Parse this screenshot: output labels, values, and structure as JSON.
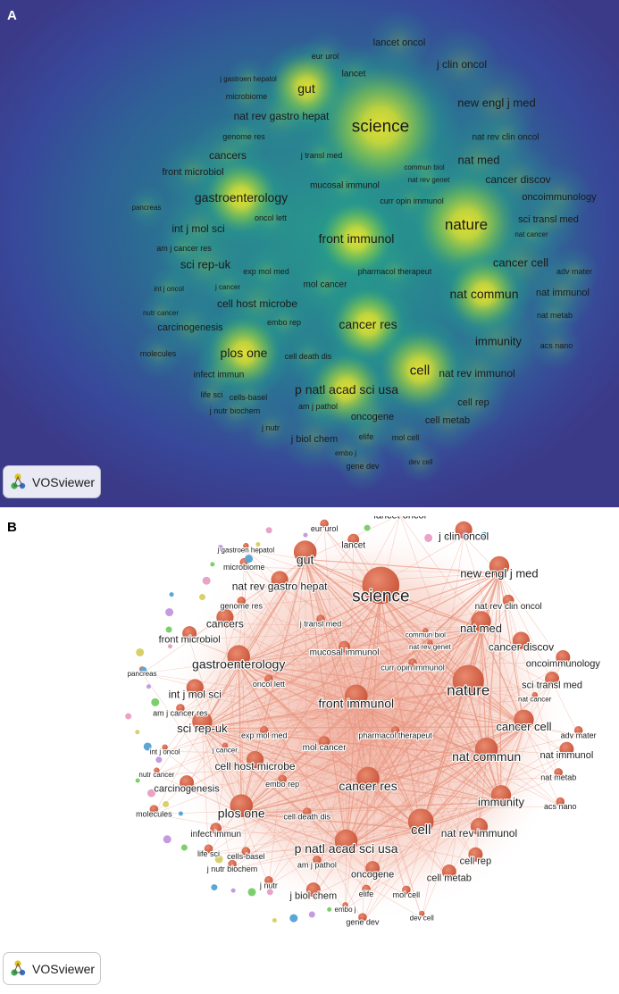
{
  "panels": [
    {
      "letter": "A",
      "kind": "density-visualization"
    },
    {
      "letter": "B",
      "kind": "network-visualization"
    }
  ],
  "brand": {
    "name": "VOSviewer",
    "icon": "vosviewer-logo-icon"
  },
  "colors": {
    "density_low": "#3a3d8f",
    "density_mid": "#21a28c",
    "density_high": "#f6ea2b",
    "network_main_cluster": "#d7664a",
    "network_edges": "#e8957f",
    "minor_clusters": [
      "#7ccf6d",
      "#c49be0",
      "#5aa7d6",
      "#d8d06a",
      "#e9a3c6"
    ]
  },
  "journals": [
    {
      "label": "lancet oncol",
      "size": 11
    },
    {
      "label": "eur urol",
      "size": 9
    },
    {
      "label": "j clin oncol",
      "size": 12
    },
    {
      "label": "j gastroen hepatol",
      "size": 8
    },
    {
      "label": "lancet",
      "size": 10
    },
    {
      "label": "microbiome",
      "size": 9
    },
    {
      "label": "gut",
      "size": 14
    },
    {
      "label": "new engl j med",
      "size": 13
    },
    {
      "label": "nat rev gastro hepat",
      "size": 12
    },
    {
      "label": "science",
      "size": 19
    },
    {
      "label": "genome res",
      "size": 9
    },
    {
      "label": "nat rev clin oncol",
      "size": 10
    },
    {
      "label": "cancers",
      "size": 12
    },
    {
      "label": "j transl med",
      "size": 9
    },
    {
      "label": "nat med",
      "size": 13
    },
    {
      "label": "front microbiol",
      "size": 11
    },
    {
      "label": "commun biol",
      "size": 8
    },
    {
      "label": "nat rev genet",
      "size": 8
    },
    {
      "label": "cancer discov",
      "size": 12
    },
    {
      "label": "mucosal immunol",
      "size": 10
    },
    {
      "label": "oncoimmunology",
      "size": 11
    },
    {
      "label": "pancreas",
      "size": 8
    },
    {
      "label": "gastroenterology",
      "size": 14
    },
    {
      "label": "curr opin immunol",
      "size": 9
    },
    {
      "label": "oncol lett",
      "size": 9
    },
    {
      "label": "sci transl med",
      "size": 11
    },
    {
      "label": "nature",
      "size": 17
    },
    {
      "label": "int j mol sci",
      "size": 12
    },
    {
      "label": "nat cancer",
      "size": 8
    },
    {
      "label": "am j cancer res",
      "size": 9
    },
    {
      "label": "front immunol",
      "size": 14
    },
    {
      "label": "cancer cell",
      "size": 13
    },
    {
      "label": "sci rep-uk",
      "size": 13
    },
    {
      "label": "exp mol med",
      "size": 9
    },
    {
      "label": "pharmacol therapeut",
      "size": 9
    },
    {
      "label": "adv mater",
      "size": 9
    },
    {
      "label": "int j oncol",
      "size": 8
    },
    {
      "label": "j cancer",
      "size": 8
    },
    {
      "label": "mol cancer",
      "size": 10
    },
    {
      "label": "nat commun",
      "size": 14
    },
    {
      "label": "nat immunol",
      "size": 11
    },
    {
      "label": "cell host microbe",
      "size": 12
    },
    {
      "label": "nutr cancer",
      "size": 8
    },
    {
      "label": "embo rep",
      "size": 9
    },
    {
      "label": "nat metab",
      "size": 9
    },
    {
      "label": "carcinogenesis",
      "size": 11
    },
    {
      "label": "cancer res",
      "size": 14
    },
    {
      "label": "immunity",
      "size": 13
    },
    {
      "label": "acs nano",
      "size": 9
    },
    {
      "label": "molecules",
      "size": 9
    },
    {
      "label": "plos one",
      "size": 14
    },
    {
      "label": "cell death dis",
      "size": 9
    },
    {
      "label": "cell",
      "size": 15
    },
    {
      "label": "infect immun",
      "size": 10
    },
    {
      "label": "nat rev immunol",
      "size": 12
    },
    {
      "label": "life sci",
      "size": 9
    },
    {
      "label": "cells-basel",
      "size": 9
    },
    {
      "label": "p natl acad sci usa",
      "size": 14
    },
    {
      "label": "j nutr biochem",
      "size": 9
    },
    {
      "label": "am j pathol",
      "size": 9
    },
    {
      "label": "cell rep",
      "size": 11
    },
    {
      "label": "oncogene",
      "size": 11
    },
    {
      "label": "cell metab",
      "size": 11
    },
    {
      "label": "j nutr",
      "size": 9
    },
    {
      "label": "j biol chem",
      "size": 11
    },
    {
      "label": "elife",
      "size": 9
    },
    {
      "label": "mol cell",
      "size": 9
    },
    {
      "label": "embo j",
      "size": 8
    },
    {
      "label": "gene dev",
      "size": 9
    },
    {
      "label": "dev cell",
      "size": 8
    }
  ]
}
